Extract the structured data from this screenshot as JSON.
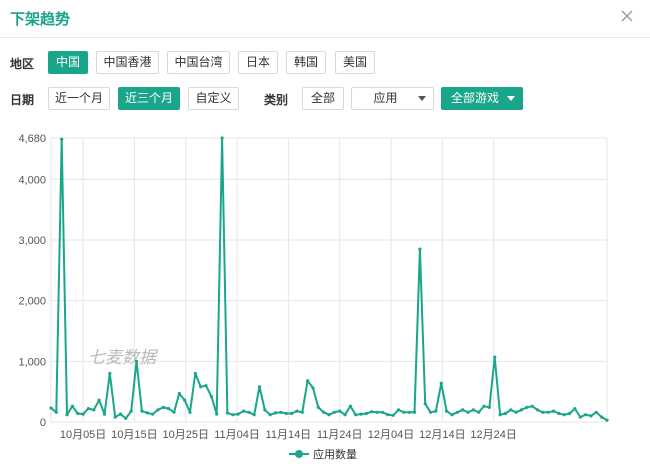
{
  "dialog": {
    "title": "下架趋势"
  },
  "filters": {
    "region_label": "地区",
    "regions": [
      "中国",
      "中国香港",
      "中国台湾",
      "日本",
      "韩国",
      "美国"
    ],
    "date_label": "日期",
    "dates": [
      "近一个月",
      "近三个月",
      "自定义"
    ],
    "category_label": "类别",
    "category_all": "全部",
    "type_select": "应用",
    "game_select": "全部游戏"
  },
  "watermark": "七麦数据",
  "chart_data": {
    "type": "line",
    "ylim": [
      0,
      4680
    ],
    "yticks": [
      "0",
      "1,000",
      "2,000",
      "3,000",
      "4,000",
      "4,680"
    ],
    "ytick_values": [
      0,
      1000,
      2000,
      3000,
      4000,
      4680
    ],
    "xtick_labels": [
      "10月05日",
      "10月15日",
      "10月25日",
      "11月04日",
      "11月14日",
      "11月24日",
      "12月04日",
      "12月14日",
      "12月24日"
    ],
    "grid": true,
    "legend_position": "bottom",
    "series": [
      {
        "name": "应用数量",
        "color": "#19a68b",
        "values": [
          230,
          160,
          4660,
          120,
          260,
          140,
          130,
          220,
          200,
          360,
          130,
          800,
          80,
          130,
          60,
          180,
          1000,
          180,
          150,
          130,
          200,
          240,
          220,
          160,
          470,
          360,
          160,
          800,
          580,
          600,
          420,
          130,
          4680,
          150,
          120,
          130,
          180,
          160,
          120,
          580,
          200,
          120,
          150,
          160,
          140,
          140,
          180,
          160,
          680,
          560,
          240,
          160,
          120,
          160,
          180,
          120,
          260,
          120,
          130,
          140,
          170,
          160,
          160,
          120,
          110,
          200,
          160,
          160,
          160,
          2850,
          300,
          160,
          180,
          640,
          180,
          120,
          160,
          200,
          160,
          200,
          160,
          260,
          240,
          1070,
          120,
          140,
          200,
          160,
          200,
          240,
          260,
          200,
          160,
          160,
          180,
          140,
          120,
          140,
          220,
          80,
          120,
          100,
          160,
          80,
          30
        ]
      }
    ]
  },
  "legend": {
    "label": "应用数量"
  }
}
